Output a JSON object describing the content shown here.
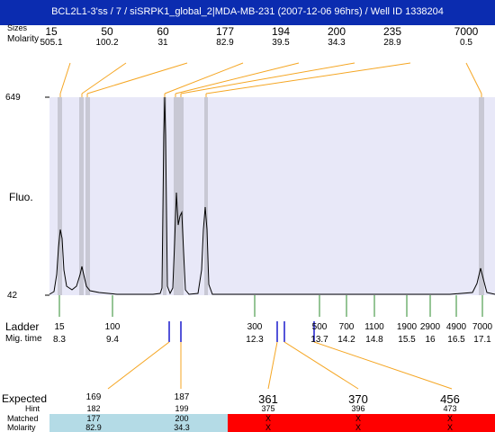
{
  "title": "BCL2L1-3'ss / 7 / siSRPK1_global_2|MDA-MB-231 (2007-12-06 96hrs) / Well ID 1338204",
  "top_labels": {
    "sizes": "Sizes",
    "molarity": "Molarity"
  },
  "top_peaks": [
    {
      "size": "15",
      "molarity": "505.1"
    },
    {
      "size": "50",
      "molarity": "100.2"
    },
    {
      "size": "60",
      "molarity": "31"
    },
    {
      "size": "177",
      "molarity": "82.9"
    },
    {
      "size": "194",
      "molarity": "39.5"
    },
    {
      "size": "200",
      "molarity": "34.3"
    },
    {
      "size": "235",
      "molarity": "28.9"
    },
    {
      "size": "7000",
      "molarity": "0.5"
    }
  ],
  "axis": {
    "ymax": "649",
    "ymin": "42",
    "ylabel": "Fluo."
  },
  "ladder": {
    "label": "Ladder",
    "mig_label": "Mig. time",
    "items": [
      {
        "size": "15",
        "time": "8.3"
      },
      {
        "size": "100",
        "time": "9.4"
      },
      {
        "size": "300",
        "time": "12.3"
      },
      {
        "size": "500",
        "time": "13.7"
      },
      {
        "size": "700",
        "time": "14.2"
      },
      {
        "size": "1100",
        "time": "14.8"
      },
      {
        "size": "1900",
        "time": "15.5"
      },
      {
        "size": "2900",
        "time": "16"
      },
      {
        "size": "4900",
        "time": "16.5"
      },
      {
        "size": "7000",
        "time": "17.1"
      }
    ]
  },
  "expected": {
    "label": "Expected",
    "hint_label": "Hint",
    "matched_label": "Matched",
    "molarity_label": "Molarity",
    "columns": [
      {
        "expected": "169",
        "hint": "182",
        "matched": "177",
        "molarity": "82.9"
      },
      {
        "expected": "187",
        "hint": "199",
        "matched": "200",
        "molarity": "34.3"
      },
      {
        "expected": "361",
        "hint": "375",
        "matched": "X",
        "molarity": "X"
      },
      {
        "expected": "370",
        "hint": "396",
        "matched": "X",
        "molarity": "X"
      },
      {
        "expected": "456",
        "hint": "473",
        "matched": "X",
        "molarity": "X"
      }
    ]
  },
  "colors": {
    "title_bg": "#0b2cb0",
    "plot_bg": "#e8e8f8",
    "band": "#c8c8d4",
    "connector": "#f5a623",
    "matched_bg": "#b4dbe6",
    "unmatched_bg": "#ff0000",
    "ladder_tick": "#2e8b2e",
    "marker": "#1a1acc"
  }
}
